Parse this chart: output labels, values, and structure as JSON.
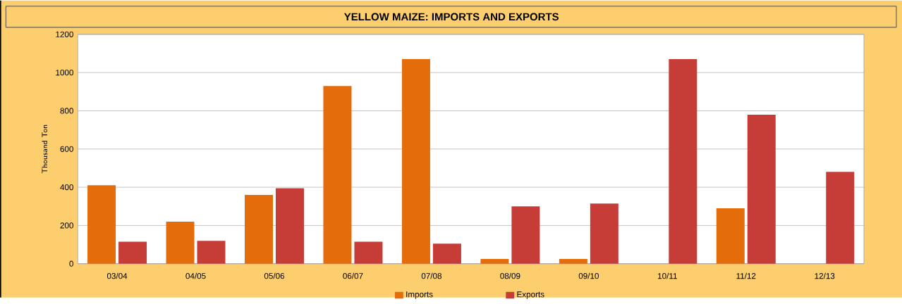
{
  "chart_data": {
    "type": "bar",
    "title": "YELLOW MAIZE: IMPORTS AND EXPORTS",
    "ylabel": "Thousand Ton",
    "categories": [
      "03/04",
      "04/05",
      "05/06",
      "06/07",
      "07/08",
      "08/09",
      "09/10",
      "10/11",
      "11/12",
      "12/13"
    ],
    "series": [
      {
        "name": "Imports",
        "color": "#e46c0a",
        "values": [
          410,
          220,
          360,
          930,
          1070,
          25,
          25,
          null,
          290,
          null
        ]
      },
      {
        "name": "Exports",
        "color": "#c63d38",
        "values": [
          115,
          120,
          395,
          115,
          105,
          300,
          315,
          1070,
          780,
          480
        ]
      }
    ],
    "ylim": [
      0,
      1200
    ],
    "yticks": [
      0,
      200,
      400,
      600,
      800,
      1000,
      1200
    ],
    "grid": "y",
    "legend": "bottom"
  }
}
